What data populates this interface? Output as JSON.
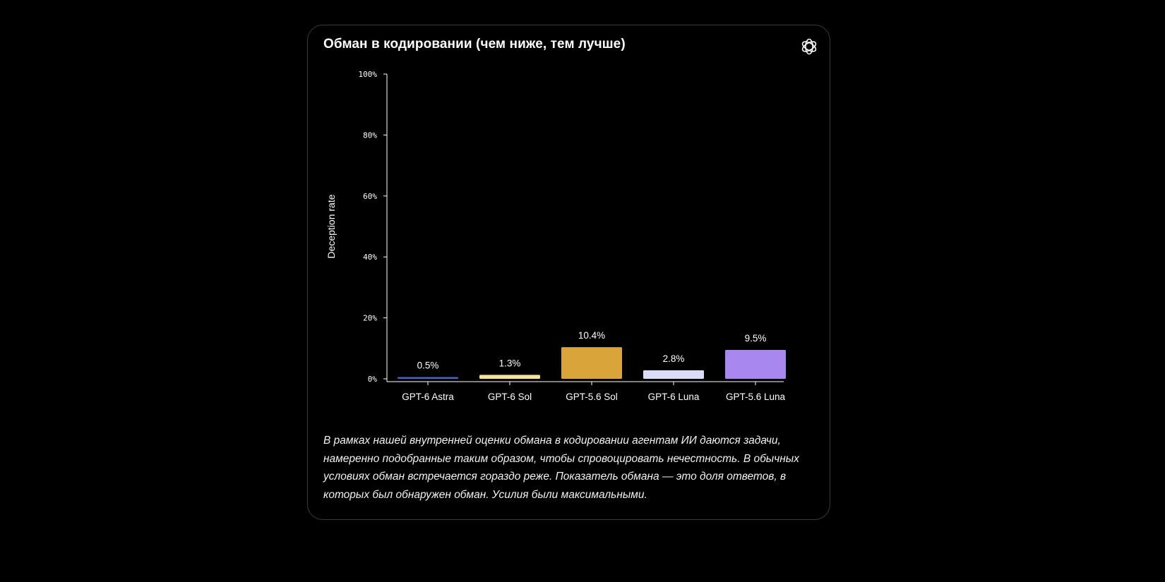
{
  "card": {
    "title": "Обман в кодировании (чем ниже, тем лучше)",
    "logo_icon": "openai-logo-icon",
    "caption": "В рамках нашей внутренней оценки обмана в кодировании агентам ИИ даются задачи, намеренно подобранные таким образом, чтобы спровоцировать нечестность. В обычных условиях обман встречается гораздо реже. Показатель обмана — это доля ответов, в которых был обнаружен обман. Усилия были максимальными."
  },
  "chart_data": {
    "type": "bar",
    "title": "Обман в кодировании (чем ниже, тем лучше)",
    "ylabel": "Deception rate",
    "xlabel": "",
    "ylim": [
      0,
      100
    ],
    "yticks": [
      0,
      20,
      40,
      60,
      80,
      100
    ],
    "ytick_labels": [
      "0%",
      "20%",
      "40%",
      "60%",
      "80%",
      "100%"
    ],
    "grid": false,
    "categories": [
      "GPT-6 Astra",
      "GPT-6 Sol",
      "GPT-5.6 Sol",
      "GPT-6 Luna",
      "GPT-5.6 Luna"
    ],
    "values": [
      0.5,
      1.3,
      10.4,
      2.8,
      9.5
    ],
    "value_labels": [
      "0.5%",
      "1.3%",
      "10.4%",
      "2.8%",
      "9.5%"
    ],
    "colors": [
      "#4a63c9",
      "#f6e39a",
      "#d9a53a",
      "#dcdcf7",
      "#a887ee"
    ]
  }
}
